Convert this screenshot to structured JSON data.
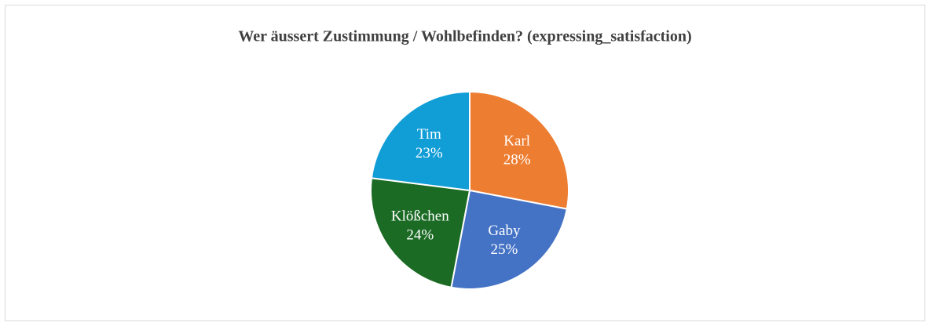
{
  "chart_data": {
    "type": "pie",
    "title": "Wer äussert Zustimmung / Wohlbefinden? (expressing_satisfaction)",
    "categories": [
      "Karl",
      "Gaby",
      "Klößchen",
      "Tim"
    ],
    "values": [
      28,
      25,
      24,
      23
    ],
    "value_labels": [
      "28%",
      "25%",
      "24%",
      "23%"
    ],
    "colors": [
      "#ed7d31",
      "#4472c4",
      "#1b6b25",
      "#119dd6"
    ]
  }
}
